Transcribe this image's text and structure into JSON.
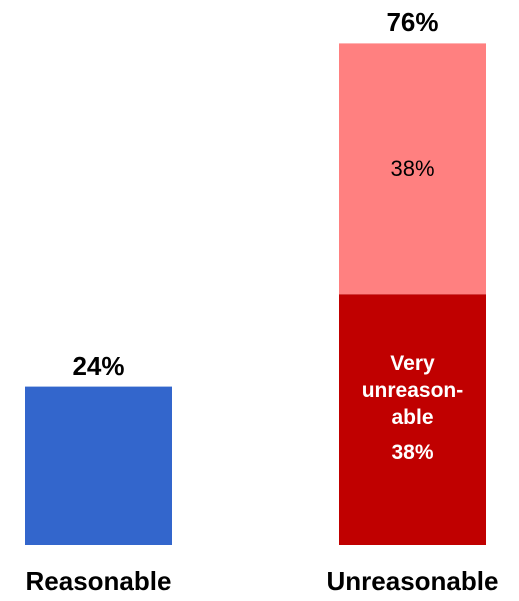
{
  "chart_data": {
    "type": "bar",
    "stacked": true,
    "categories": [
      "Reasonable",
      "Unreasonable"
    ],
    "ylim": [
      0,
      80
    ],
    "grid": false,
    "bars": [
      {
        "category": "Reasonable",
        "total_label": "24%",
        "segments": [
          {
            "value": 24,
            "color": "#3366CC",
            "label": ""
          }
        ]
      },
      {
        "category": "Unreasonable",
        "total_label": "76%",
        "segments": [
          {
            "value": 38,
            "color": "#C00000",
            "name": "Very unreasonable",
            "name_lines": [
              "Very",
              "unreason-",
              "able"
            ],
            "label": "38%"
          },
          {
            "value": 38,
            "color": "#FF8080",
            "label": "38%"
          }
        ]
      }
    ]
  }
}
